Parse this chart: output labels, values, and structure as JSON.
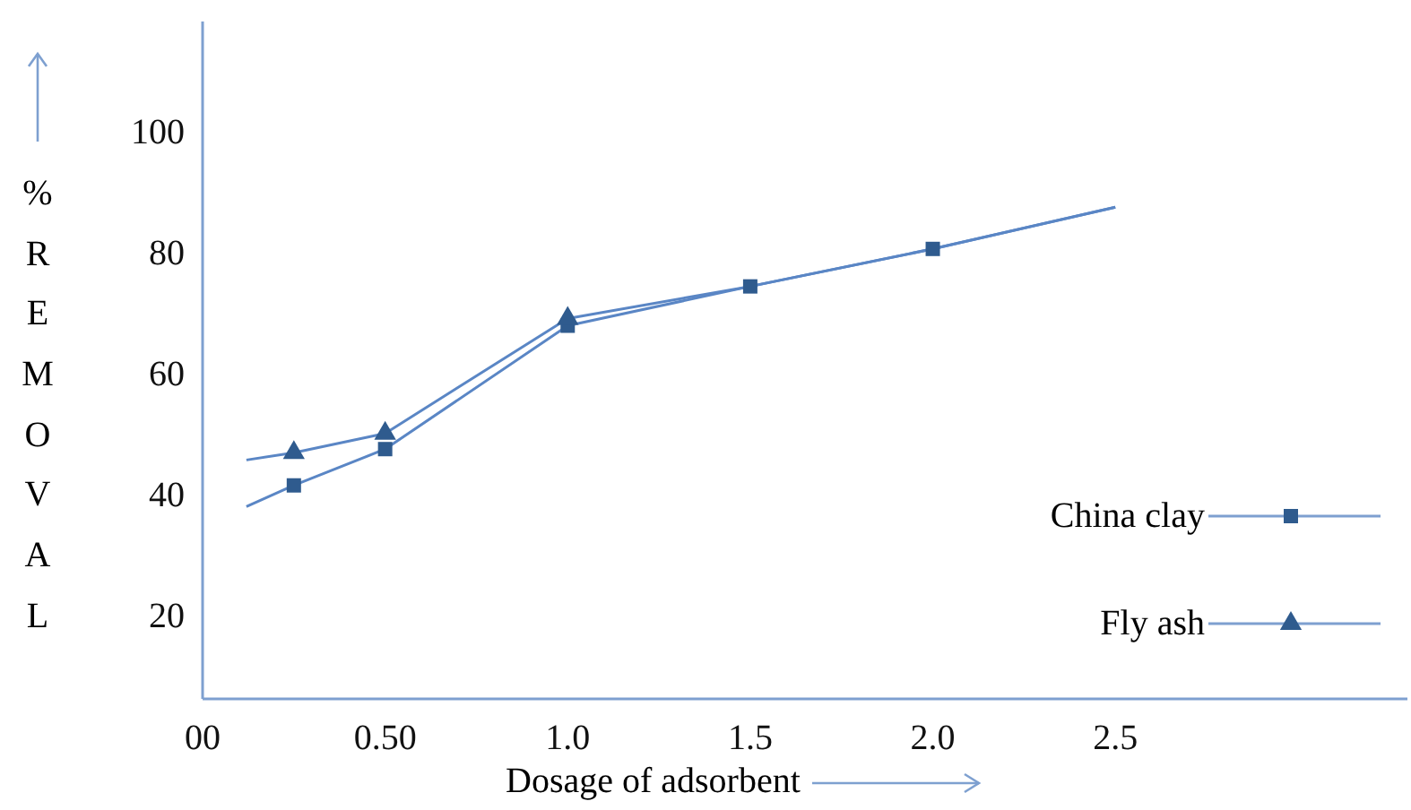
{
  "chart_data": {
    "type": "line",
    "xlabel": "Dosage of adsorbent",
    "ylabel": "% REMOVAL",
    "xlim": [
      0,
      3.3
    ],
    "xticks": [
      {
        "value": 0,
        "label": "00"
      },
      {
        "value": 0.5,
        "label": "0.50"
      },
      {
        "value": 1,
        "label": "1.0"
      },
      {
        "value": 1.5,
        "label": "1.5"
      },
      {
        "value": 2,
        "label": "2.0"
      },
      {
        "value": 2.5,
        "label": "2.5"
      }
    ],
    "ylim": [
      6,
      118
    ],
    "yticks": [
      20,
      40,
      60,
      80,
      100
    ],
    "grid": false,
    "legend": "right",
    "series": [
      {
        "color": "#5a86c5",
        "marker": "none",
        "x": [
          0.12,
          0.25,
          0.5,
          1,
          1.5,
          2,
          2.5
        ],
        "values": [
          45.5,
          46.7,
          49.9,
          68.9,
          74.2,
          80.4,
          87.3
        ]
      },
      {
        "color": "#5a86c5",
        "marker": "none",
        "x": [
          0.12,
          0.25,
          0.5,
          1,
          1.5,
          2,
          2.5
        ],
        "values": [
          37.8,
          41.3,
          47.3,
          67.7,
          74.2,
          80.4,
          87.3
        ]
      },
      {
        "type": "scatter",
        "name": "China clay",
        "color": "#2f5b8e",
        "marker": "square",
        "x": [
          0.25,
          0.5,
          1,
          1.5,
          2
        ],
        "values": [
          41.3,
          47.3,
          67.7,
          74.2,
          80.4
        ]
      },
      {
        "type": "scatter",
        "name": "Fly ash",
        "color": "#2f5b8e",
        "marker": "triangle",
        "x": [
          0.25,
          0.5,
          1
        ],
        "values": [
          46.7,
          49.9,
          68.9
        ]
      }
    ]
  }
}
